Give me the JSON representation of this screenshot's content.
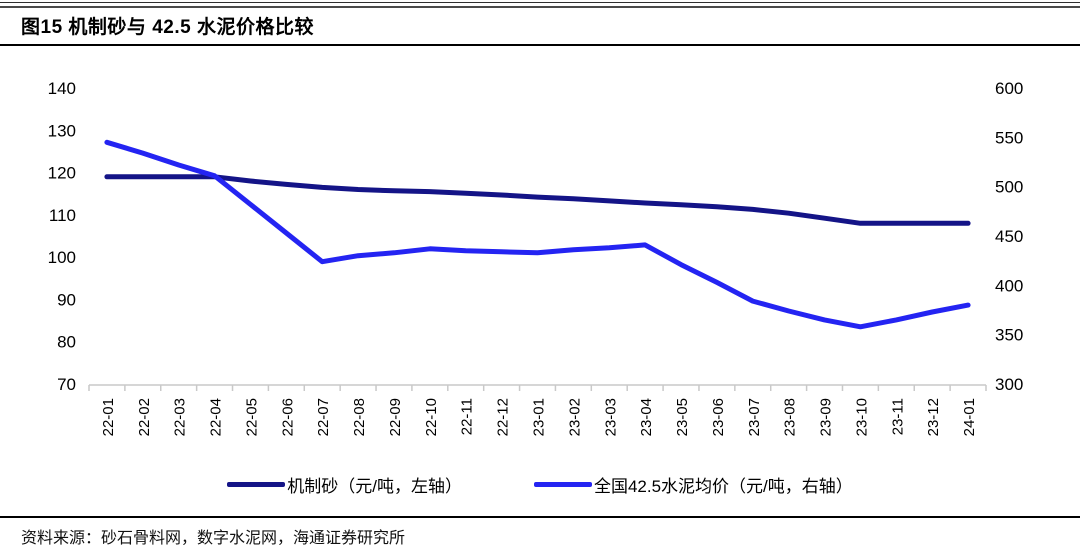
{
  "title": "图15 机制砂与 42.5 水泥价格比较",
  "source": "资料来源：砂石骨料网，数字水泥网，海通证券研究所",
  "legend": {
    "sand_label": "机制砂（元/吨，左轴）",
    "cement_label": "全国42.5水泥均价（元/吨，右轴）"
  },
  "colors": {
    "sand_line": "#141487",
    "cement_line": "#2424F2",
    "axis_line": "#C9C9C9",
    "text": "#000000"
  },
  "chart_data": {
    "type": "line",
    "categories": [
      "22-01",
      "22-02",
      "22-03",
      "22-04",
      "22-05",
      "22-06",
      "22-07",
      "22-08",
      "22-09",
      "22-10",
      "22-11",
      "22-12",
      "23-01",
      "23-02",
      "23-03",
      "23-04",
      "23-05",
      "23-06",
      "23-07",
      "23-08",
      "23-09",
      "23-10",
      "23-11",
      "23-12",
      "24-01"
    ],
    "series": [
      {
        "name": "机制砂（元/吨，左轴）",
        "axis": "left",
        "color": "#141487",
        "values": [
          119,
          119,
          119,
          119,
          118,
          117.2,
          116.5,
          116,
          115.7,
          115.5,
          115.1,
          114.7,
          114.2,
          113.8,
          113.3,
          112.8,
          112.4,
          111.9,
          111.3,
          110.4,
          109.2,
          108,
          108,
          108,
          108
        ]
      },
      {
        "name": "全国42.5水泥均价（元/吨，右轴）",
        "axis": "right",
        "color": "#2424F2",
        "values": [
          545,
          534,
          522,
          511,
          482,
          453,
          424,
          430,
          433,
          437,
          435,
          434,
          433,
          436,
          438,
          441,
          421,
          403,
          384,
          374,
          365,
          358,
          365,
          373,
          380
        ]
      }
    ],
    "left_axis": {
      "min": 70,
      "max": 140,
      "step": 10,
      "ticks": [
        140,
        130,
        120,
        110,
        100,
        90,
        80,
        70
      ]
    },
    "right_axis": {
      "min": 300,
      "max": 600,
      "step": 50,
      "ticks": [
        600,
        550,
        500,
        450,
        400,
        350,
        300
      ]
    },
    "grid": false,
    "legend_position": "bottom"
  }
}
